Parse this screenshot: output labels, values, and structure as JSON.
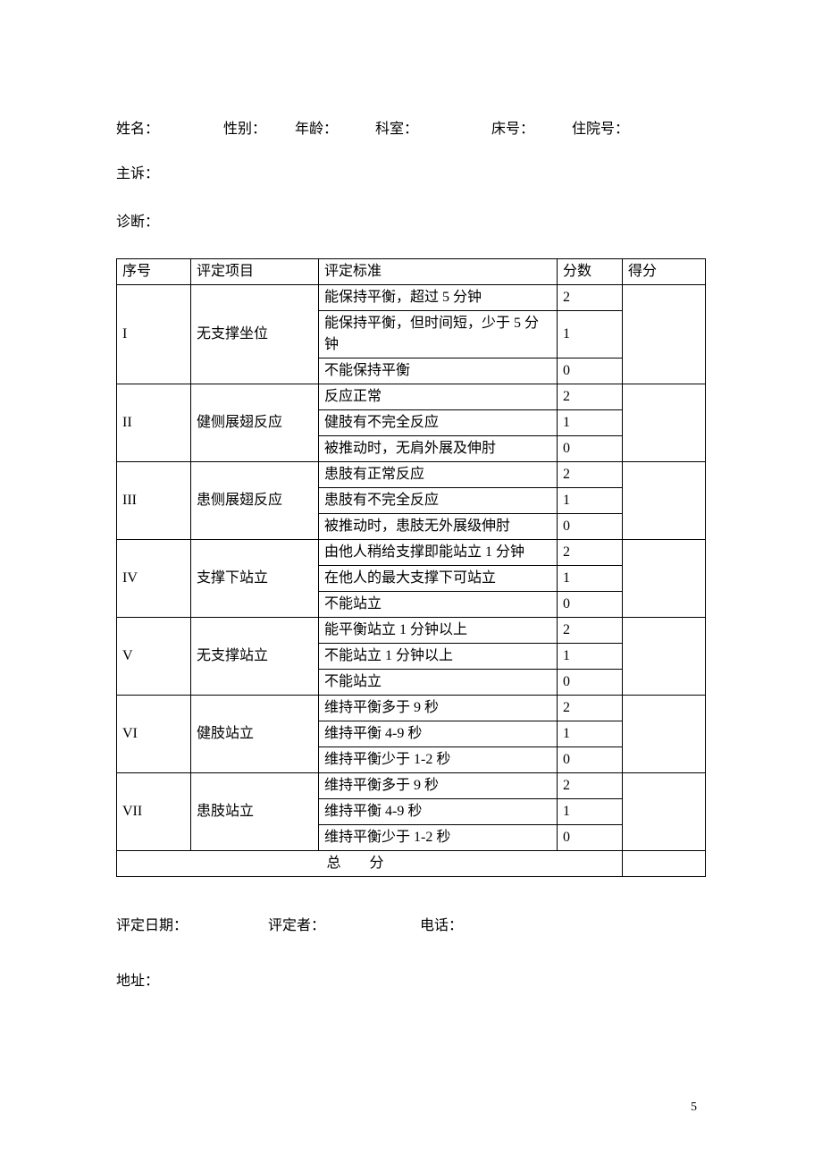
{
  "header": {
    "name_label": "姓名：",
    "gender_label": "性别：",
    "age_label": "年龄：",
    "dept_label": "科室：",
    "bed_label": "床号：",
    "admission_label": "住院号：",
    "complaint_label": "主诉：",
    "diagnosis_label": "诊断："
  },
  "table": {
    "head": {
      "seq": "序号",
      "item": "评定项目",
      "criteria": "评定标准",
      "score": "分数",
      "got": "得分"
    },
    "groups": [
      {
        "seq": "I",
        "item": "无支撑坐位",
        "rows": [
          {
            "criteria": "能保持平衡，超过 5 分钟",
            "score": "2"
          },
          {
            "criteria": "能保持平衡，但时间短，少于 5 分钟",
            "score": "1"
          },
          {
            "criteria": "不能保持平衡",
            "score": "0"
          }
        ]
      },
      {
        "seq": "II",
        "item": "健侧展翅反应",
        "rows": [
          {
            "criteria": "反应正常",
            "score": "2"
          },
          {
            "criteria": "健肢有不完全反应",
            "score": "1"
          },
          {
            "criteria": "被推动时，无肩外展及伸肘",
            "score": "0"
          }
        ]
      },
      {
        "seq": "III",
        "item": "患侧展翅反应",
        "rows": [
          {
            "criteria": "患肢有正常反应",
            "score": "2"
          },
          {
            "criteria": "患肢有不完全反应",
            "score": "1"
          },
          {
            "criteria": "被推动时，患肢无外展级伸肘",
            "score": "0"
          }
        ]
      },
      {
        "seq": "IV",
        "item": "支撑下站立",
        "rows": [
          {
            "criteria": "由他人稍给支撑即能站立 1 分钟",
            "score": "2"
          },
          {
            "criteria": "在他人的最大支撑下可站立",
            "score": "1"
          },
          {
            "criteria": "不能站立",
            "score": "0"
          }
        ]
      },
      {
        "seq": "V",
        "item": "无支撑站立",
        "rows": [
          {
            "criteria": "能平衡站立 1 分钟以上",
            "score": "2"
          },
          {
            "criteria": "不能站立 1 分钟以上",
            "score": "1"
          },
          {
            "criteria": "不能站立",
            "score": "0"
          }
        ]
      },
      {
        "seq": "VI",
        "item": "健肢站立",
        "rows": [
          {
            "criteria": "维持平衡多于 9 秒",
            "score": "2"
          },
          {
            "criteria": "维持平衡 4-9 秒",
            "score": "1"
          },
          {
            "criteria": "维持平衡少于 1-2 秒",
            "score": "0"
          }
        ]
      },
      {
        "seq": "VII",
        "item": "患肢站立",
        "rows": [
          {
            "criteria": "维持平衡多于 9 秒",
            "score": "2"
          },
          {
            "criteria": "维持平衡 4-9 秒",
            "score": "1"
          },
          {
            "criteria": "维持平衡少于 1-2 秒",
            "score": "0"
          }
        ]
      }
    ],
    "total_label": "总分"
  },
  "footer": {
    "date_label": "评定日期：",
    "assessor_label": "评定者：",
    "phone_label": "电话：",
    "address_label": "地址："
  },
  "page_number": "5"
}
